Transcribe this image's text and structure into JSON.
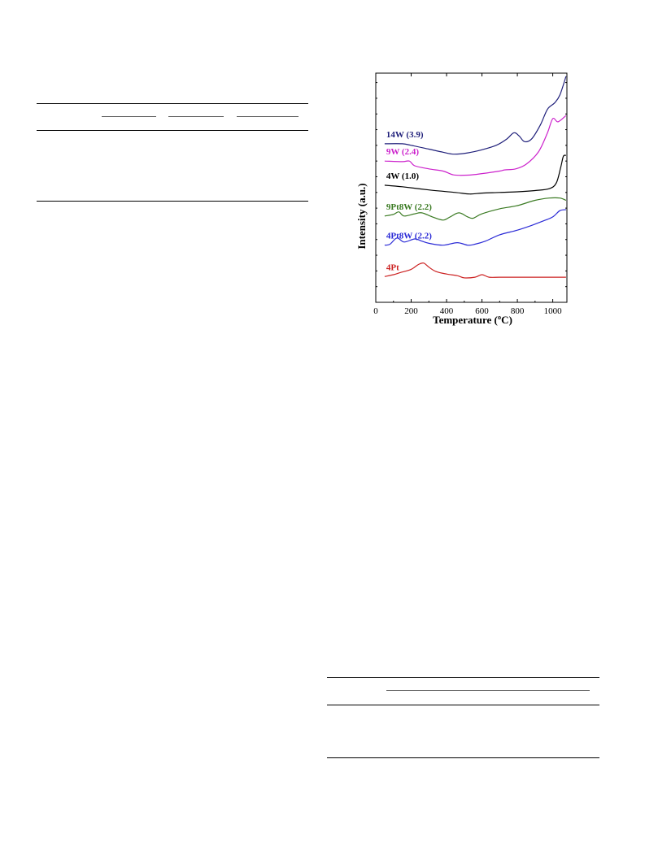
{
  "chart_data": {
    "type": "line",
    "xlabel": "Temperature (ºC)",
    "ylabel": "Intensity (a.u.)",
    "xlim": [
      0,
      1080
    ],
    "x_ticks": [
      "0",
      "200",
      "400",
      "600",
      "800",
      "1000"
    ],
    "grid": false,
    "legend": "inline labels above each trace",
    "series": [
      {
        "name": "14W (3.9)",
        "color": "#1f1f7a",
        "points": [
          [
            50,
            5.05
          ],
          [
            150,
            5.05
          ],
          [
            200,
            5.0
          ],
          [
            300,
            4.88
          ],
          [
            380,
            4.78
          ],
          [
            440,
            4.72
          ],
          [
            520,
            4.76
          ],
          [
            600,
            4.86
          ],
          [
            680,
            5.0
          ],
          [
            740,
            5.2
          ],
          [
            780,
            5.4
          ],
          [
            810,
            5.3
          ],
          [
            840,
            5.12
          ],
          [
            880,
            5.2
          ],
          [
            930,
            5.65
          ],
          [
            970,
            6.15
          ],
          [
            1010,
            6.35
          ],
          [
            1040,
            6.6
          ],
          [
            1075,
            7.2
          ]
        ]
      },
      {
        "name": "9W (2.4)",
        "color": "#cc22cc",
        "points": [
          [
            50,
            4.5
          ],
          [
            150,
            4.48
          ],
          [
            190,
            4.5
          ],
          [
            220,
            4.35
          ],
          [
            300,
            4.25
          ],
          [
            380,
            4.18
          ],
          [
            440,
            4.06
          ],
          [
            520,
            4.05
          ],
          [
            600,
            4.1
          ],
          [
            700,
            4.18
          ],
          [
            730,
            4.22
          ],
          [
            790,
            4.25
          ],
          [
            850,
            4.4
          ],
          [
            920,
            4.8
          ],
          [
            970,
            5.4
          ],
          [
            1000,
            5.85
          ],
          [
            1030,
            5.75
          ],
          [
            1075,
            5.95
          ]
        ]
      },
      {
        "name": "4W (1.0)",
        "color": "#000000",
        "points": [
          [
            50,
            3.73
          ],
          [
            150,
            3.68
          ],
          [
            300,
            3.58
          ],
          [
            450,
            3.5
          ],
          [
            530,
            3.45
          ],
          [
            600,
            3.48
          ],
          [
            700,
            3.5
          ],
          [
            800,
            3.52
          ],
          [
            900,
            3.56
          ],
          [
            980,
            3.62
          ],
          [
            1020,
            3.8
          ],
          [
            1045,
            4.3
          ],
          [
            1060,
            4.65
          ],
          [
            1075,
            4.68
          ]
        ]
      },
      {
        "name": "9Pt8W (2.2)",
        "color": "#3a7a22",
        "points": [
          [
            50,
            2.75
          ],
          [
            100,
            2.8
          ],
          [
            130,
            2.88
          ],
          [
            160,
            2.75
          ],
          [
            220,
            2.82
          ],
          [
            260,
            2.85
          ],
          [
            320,
            2.72
          ],
          [
            380,
            2.62
          ],
          [
            420,
            2.72
          ],
          [
            470,
            2.85
          ],
          [
            520,
            2.72
          ],
          [
            550,
            2.68
          ],
          [
            600,
            2.82
          ],
          [
            700,
            2.98
          ],
          [
            800,
            3.08
          ],
          [
            900,
            3.25
          ],
          [
            980,
            3.32
          ],
          [
            1040,
            3.32
          ],
          [
            1075,
            3.25
          ]
        ]
      },
      {
        "name": "4Pt8W (2.2)",
        "color": "#2a2ad6",
        "points": [
          [
            50,
            1.82
          ],
          [
            80,
            1.85
          ],
          [
            120,
            2.05
          ],
          [
            160,
            1.92
          ],
          [
            220,
            2.02
          ],
          [
            260,
            1.95
          ],
          [
            300,
            1.88
          ],
          [
            380,
            1.82
          ],
          [
            460,
            1.9
          ],
          [
            520,
            1.82
          ],
          [
            560,
            1.85
          ],
          [
            620,
            1.95
          ],
          [
            700,
            2.15
          ],
          [
            800,
            2.3
          ],
          [
            880,
            2.45
          ],
          [
            950,
            2.6
          ],
          [
            1000,
            2.72
          ],
          [
            1040,
            2.92
          ],
          [
            1075,
            2.95
          ]
        ]
      },
      {
        "name": "4Pt",
        "color": "#cc2222",
        "points": [
          [
            50,
            0.82
          ],
          [
            100,
            0.88
          ],
          [
            140,
            0.95
          ],
          [
            200,
            1.05
          ],
          [
            240,
            1.2
          ],
          [
            270,
            1.25
          ],
          [
            300,
            1.12
          ],
          [
            340,
            0.98
          ],
          [
            400,
            0.9
          ],
          [
            460,
            0.85
          ],
          [
            500,
            0.78
          ],
          [
            560,
            0.8
          ],
          [
            600,
            0.88
          ],
          [
            640,
            0.8
          ],
          [
            700,
            0.8
          ],
          [
            800,
            0.8
          ],
          [
            900,
            0.8
          ],
          [
            1000,
            0.8
          ],
          [
            1075,
            0.8
          ]
        ]
      }
    ]
  }
}
